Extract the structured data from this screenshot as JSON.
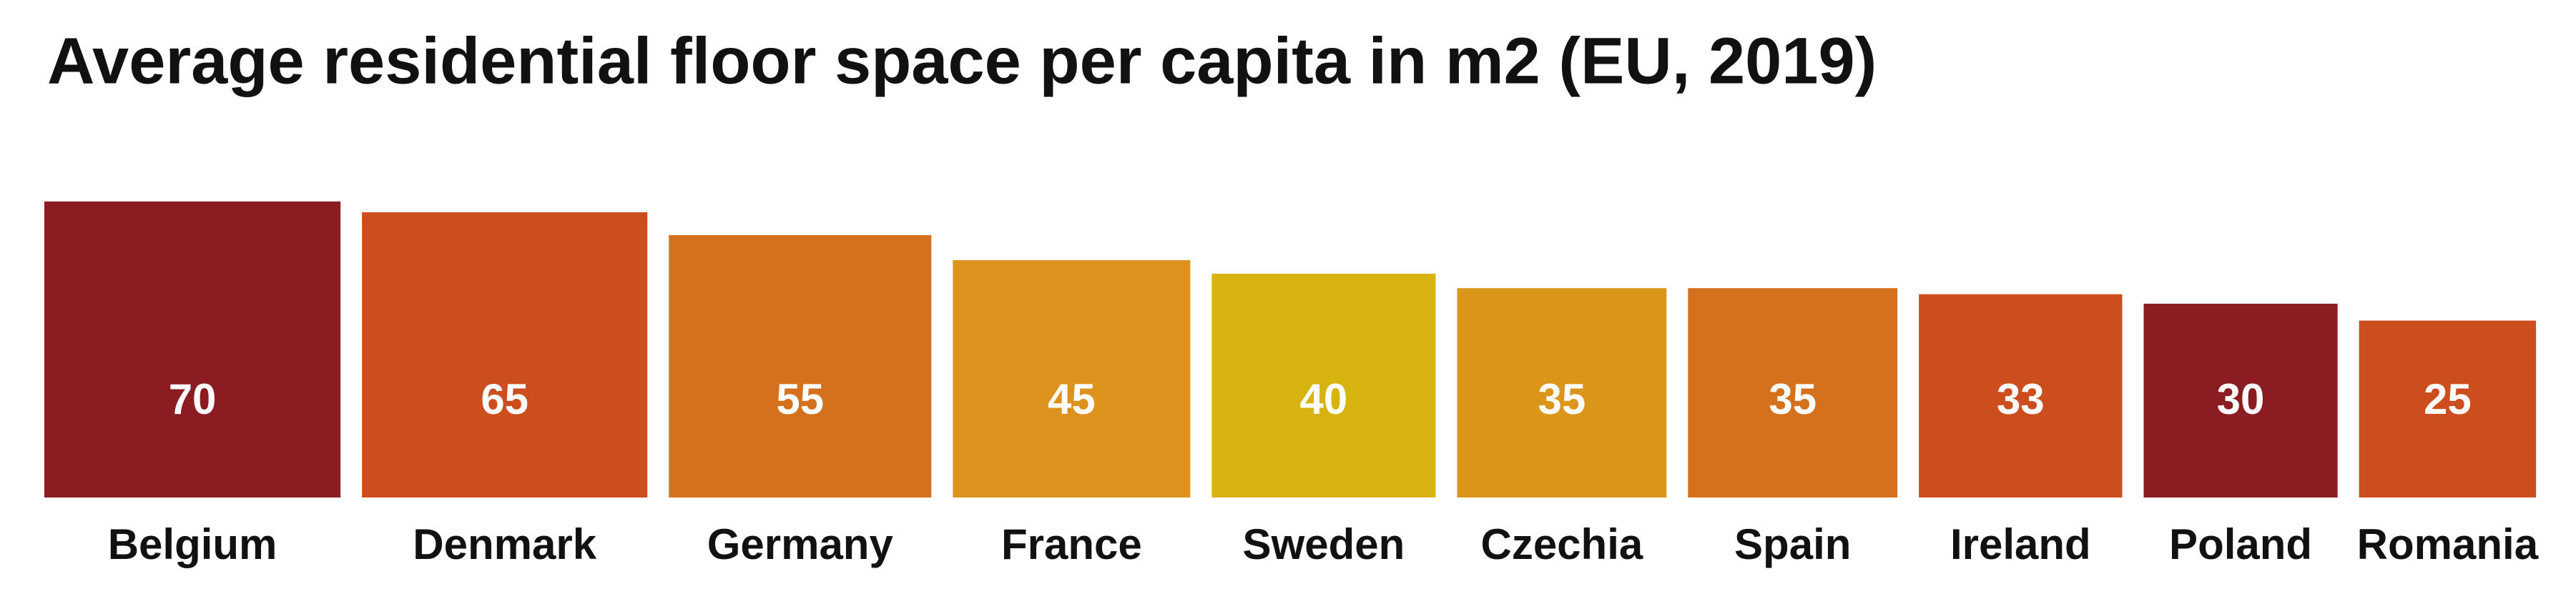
{
  "chart_data": {
    "type": "bar",
    "title": "Average residential floor space per capita in m2 (EU, 2019)",
    "categories": [
      "Belgium",
      "Denmark",
      "Germany",
      "France",
      "Sweden",
      "Czechia",
      "Spain",
      "Ireland",
      "Poland",
      "Romania"
    ],
    "values": [
      70,
      65,
      55,
      45,
      40,
      35,
      35,
      33,
      30,
      25
    ],
    "colors": [
      "#8b1c22",
      "#cc4e1e",
      "#d5701c",
      "#dc921c",
      "#d7b30f",
      "#db9519",
      "#d5711c",
      "#cc4e1e",
      "#8b1c22",
      "#cc4e1e"
    ]
  }
}
